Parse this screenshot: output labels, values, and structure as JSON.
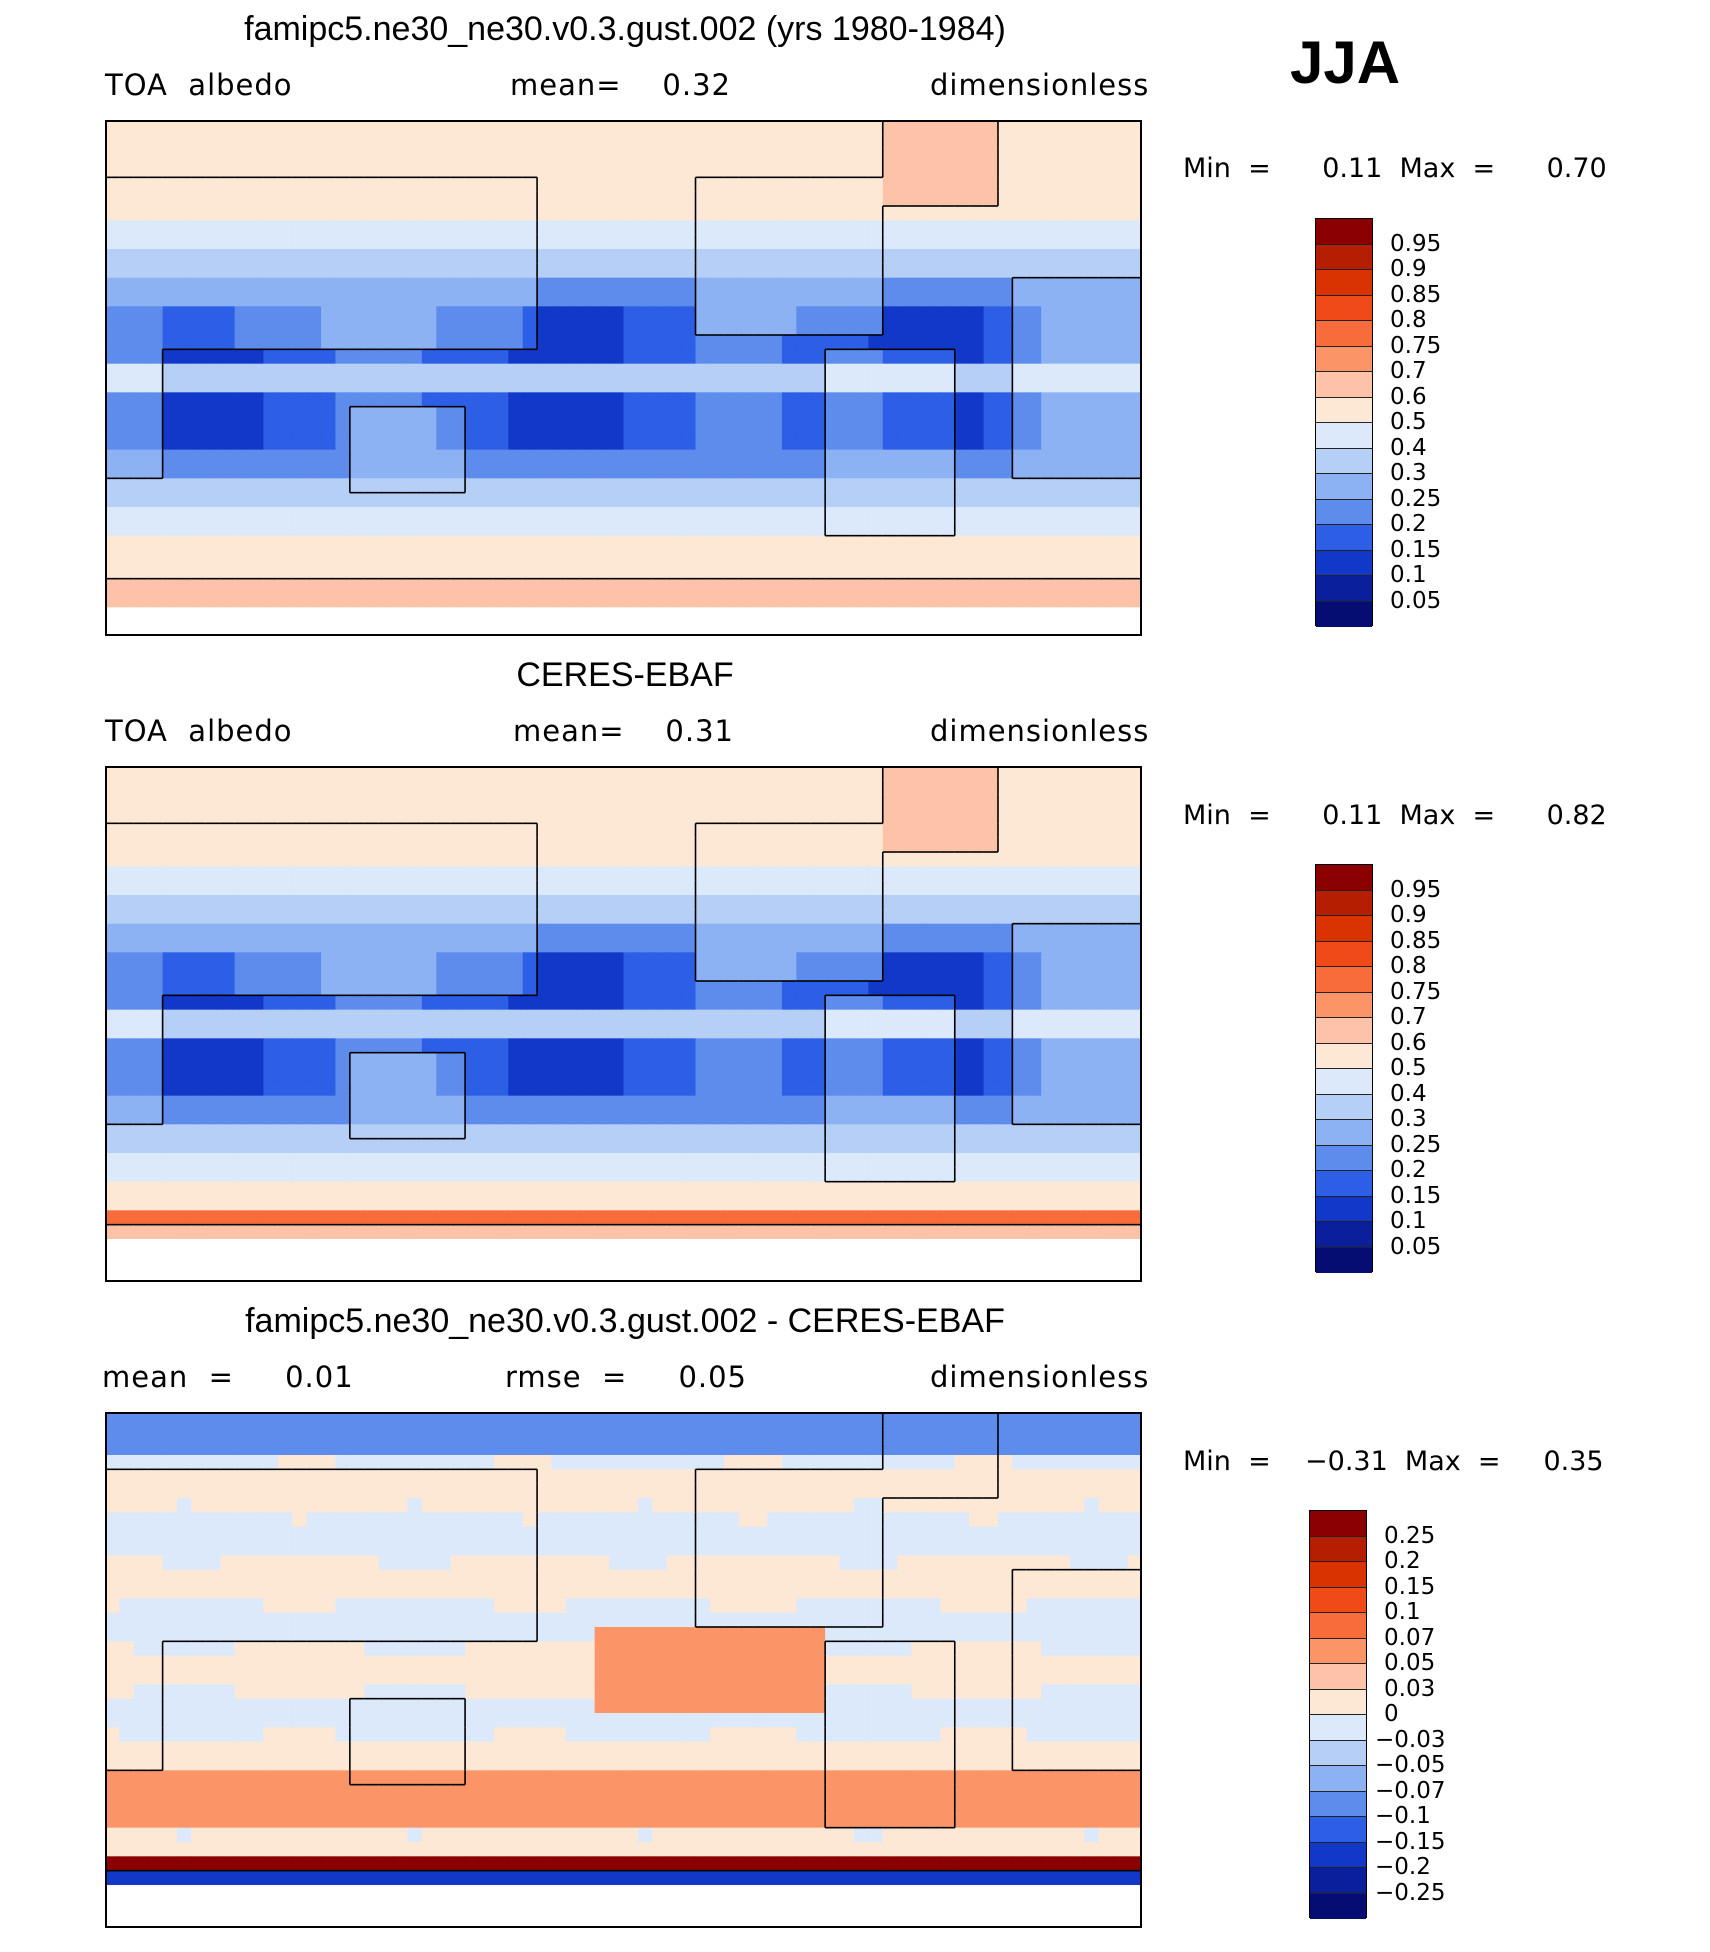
{
  "season": "JJA",
  "panels": [
    {
      "title": "famipc5.ne30_ne30.v0.3.gust.002 (yrs 1980-1984)",
      "left_label": "TOA  albedo",
      "center_label": "mean=    0.32",
      "right_label": "dimensionless",
      "min_max": "Min  =      0.11  Max  =      0.70",
      "field": "model"
    },
    {
      "title": "CERES-EBAF",
      "left_label": "TOA  albedo",
      "center_label": "mean=    0.31",
      "right_label": "dimensionless",
      "min_max": "Min  =      0.11  Max  =      0.82",
      "field": "obs"
    },
    {
      "title": "famipc5.ne30_ne30.v0.3.gust.002 - CERES-EBAF",
      "left_label": "mean  =     0.01",
      "center_label": "rmse  =     0.05",
      "right_label": "dimensionless",
      "min_max": "Min  =    −0.31  Max  =     0.35",
      "field": "diff"
    }
  ],
  "colorbars": {
    "albedo": {
      "labels": [
        "0.95",
        "0.9",
        "0.85",
        "0.8",
        "0.75",
        "0.7",
        "0.6",
        "0.5",
        "0.4",
        "0.3",
        "0.25",
        "0.2",
        "0.15",
        "0.1",
        "0.05"
      ],
      "colors": [
        "#8b0000",
        "#b51e00",
        "#d83300",
        "#ef4a18",
        "#f86b3a",
        "#fb9466",
        "#fdc3a8",
        "#fde8d6",
        "#dbe9fb",
        "#b6cff7",
        "#8db2f3",
        "#5d8ced",
        "#2c5fe5",
        "#1238c9",
        "#0a1f9c",
        "#050c72"
      ]
    },
    "diff": {
      "labels": [
        "0.25",
        "0.2",
        "0.15",
        "0.1",
        "0.07",
        "0.05",
        "0.03",
        "0",
        "−0.03",
        "−0.05",
        "−0.07",
        "−0.1",
        "−0.15",
        "−0.2",
        "−0.25"
      ],
      "colors": [
        "#8b0000",
        "#b51e00",
        "#d83300",
        "#ef4a18",
        "#f86b3a",
        "#fb9466",
        "#fdc3a8",
        "#fde8d6",
        "#dbe9fb",
        "#b6cff7",
        "#8db2f3",
        "#5d8ced",
        "#2c5fe5",
        "#1238c9",
        "#0a1f9c",
        "#050c72"
      ]
    }
  }
}
